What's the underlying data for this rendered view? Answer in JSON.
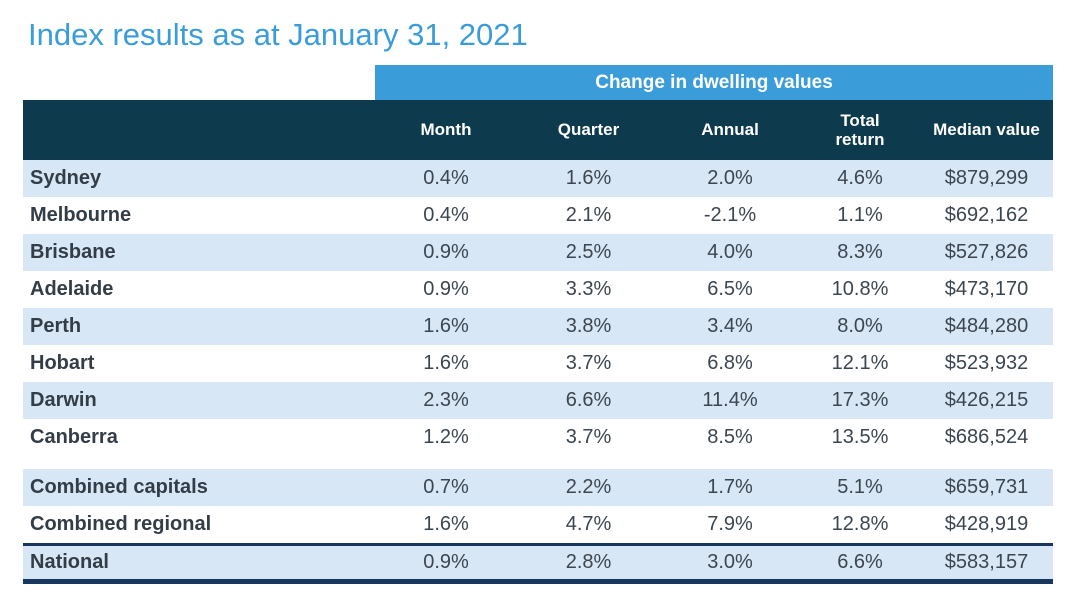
{
  "title": "Index results as at January 31, 2021",
  "table": {
    "group_header": "Change in dwelling values",
    "columns": [
      "Month",
      "Quarter",
      "Annual",
      "Total return",
      "Median value"
    ]
  },
  "colors": {
    "accent_blue": "#3B9CDA",
    "header_teal": "#0E3A4D",
    "row_shade_blue": "#D7E7F5",
    "national_border_navy": "#17375E",
    "text_dark": "#3C4650"
  },
  "chart_data": {
    "type": "table",
    "title": "Index results as at January 31, 2021",
    "group_header": "Change in dwelling values",
    "columns": [
      "Month",
      "Quarter",
      "Annual",
      "Total return",
      "Median value"
    ],
    "cities": [
      {
        "name": "Sydney",
        "month": "0.4%",
        "quarter": "1.6%",
        "annual": "2.0%",
        "total_return": "4.6%",
        "median_value": "$879,299",
        "shaded": true
      },
      {
        "name": "Melbourne",
        "month": "0.4%",
        "quarter": "2.1%",
        "annual": "-2.1%",
        "total_return": "1.1%",
        "median_value": "$692,162",
        "shaded": false
      },
      {
        "name": "Brisbane",
        "month": "0.9%",
        "quarter": "2.5%",
        "annual": "4.0%",
        "total_return": "8.3%",
        "median_value": "$527,826",
        "shaded": true
      },
      {
        "name": "Adelaide",
        "month": "0.9%",
        "quarter": "3.3%",
        "annual": "6.5%",
        "total_return": "10.8%",
        "median_value": "$473,170",
        "shaded": false
      },
      {
        "name": "Perth",
        "month": "1.6%",
        "quarter": "3.8%",
        "annual": "3.4%",
        "total_return": "8.0%",
        "median_value": "$484,280",
        "shaded": true
      },
      {
        "name": "Hobart",
        "month": "1.6%",
        "quarter": "3.7%",
        "annual": "6.8%",
        "total_return": "12.1%",
        "median_value": "$523,932",
        "shaded": false
      },
      {
        "name": "Darwin",
        "month": "2.3%",
        "quarter": "6.6%",
        "annual": "11.4%",
        "total_return": "17.3%",
        "median_value": "$426,215",
        "shaded": true
      },
      {
        "name": "Canberra",
        "month": "1.2%",
        "quarter": "3.7%",
        "annual": "8.5%",
        "total_return": "13.5%",
        "median_value": "$686,524",
        "shaded": false
      }
    ],
    "aggregates": [
      {
        "name": "Combined capitals",
        "month": "0.7%",
        "quarter": "2.2%",
        "annual": "1.7%",
        "total_return": "5.1%",
        "median_value": "$659,731",
        "shaded": true
      },
      {
        "name": "Combined regional",
        "month": "1.6%",
        "quarter": "4.7%",
        "annual": "7.9%",
        "total_return": "12.8%",
        "median_value": "$428,919",
        "shaded": false
      }
    ],
    "national": [
      {
        "name": "National",
        "month": "0.9%",
        "quarter": "2.8%",
        "annual": "3.0%",
        "total_return": "6.6%",
        "median_value": "$583,157",
        "shaded": true
      }
    ]
  }
}
